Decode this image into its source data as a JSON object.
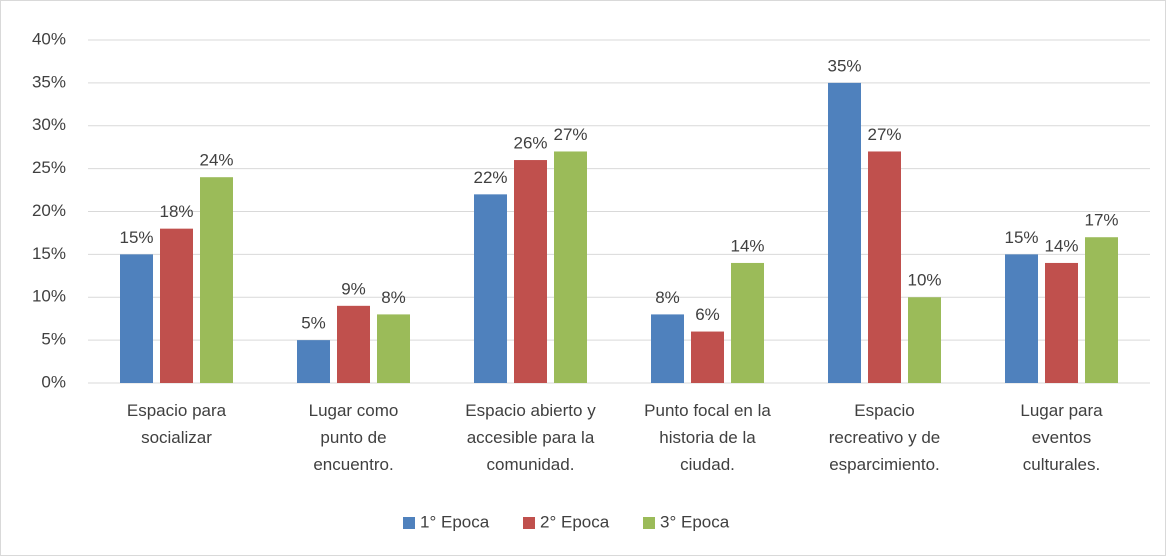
{
  "chart_data": {
    "type": "bar",
    "categories": [
      [
        "Espacio para",
        "socializar"
      ],
      [
        "Lugar como",
        "punto de",
        "encuentro."
      ],
      [
        "Espacio abierto y",
        "accesible para la",
        "comunidad."
      ],
      [
        "Punto focal en la",
        "historia de la",
        "ciudad."
      ],
      [
        "Espacio",
        "recreativo y de",
        "esparcimiento."
      ],
      [
        "Lugar para",
        "eventos",
        "culturales."
      ]
    ],
    "series": [
      {
        "name": "1° Epoca",
        "color": "#4f81bd",
        "values": [
          15,
          5,
          22,
          8,
          35,
          15
        ],
        "value_labels": [
          "15%",
          "5%",
          "22%",
          "8%",
          "35%",
          "15%"
        ]
      },
      {
        "name": "2° Epoca",
        "color": "#c0504d",
        "values": [
          18,
          9,
          26,
          6,
          27,
          14
        ],
        "value_labels": [
          "18%",
          "9%",
          "26%",
          "6%",
          "27%",
          "14%"
        ]
      },
      {
        "name": "3° Epoca",
        "color": "#9bbb59",
        "values": [
          24,
          8,
          27,
          14,
          10,
          17
        ],
        "value_labels": [
          "24%",
          "8%",
          "27%",
          "14%",
          "10%",
          "17%"
        ]
      }
    ],
    "ylim": [
      0,
      40
    ],
    "yticks": [
      {
        "value": 0,
        "label": "0%"
      },
      {
        "value": 5,
        "label": "5%"
      },
      {
        "value": 10,
        "label": "10%"
      },
      {
        "value": 15,
        "label": "15%"
      },
      {
        "value": 20,
        "label": "20%"
      },
      {
        "value": 25,
        "label": "25%"
      },
      {
        "value": 30,
        "label": "30%"
      },
      {
        "value": 35,
        "label": "35%"
      },
      {
        "value": 40,
        "label": "40%"
      }
    ],
    "grid": true,
    "legend": "bottom"
  }
}
